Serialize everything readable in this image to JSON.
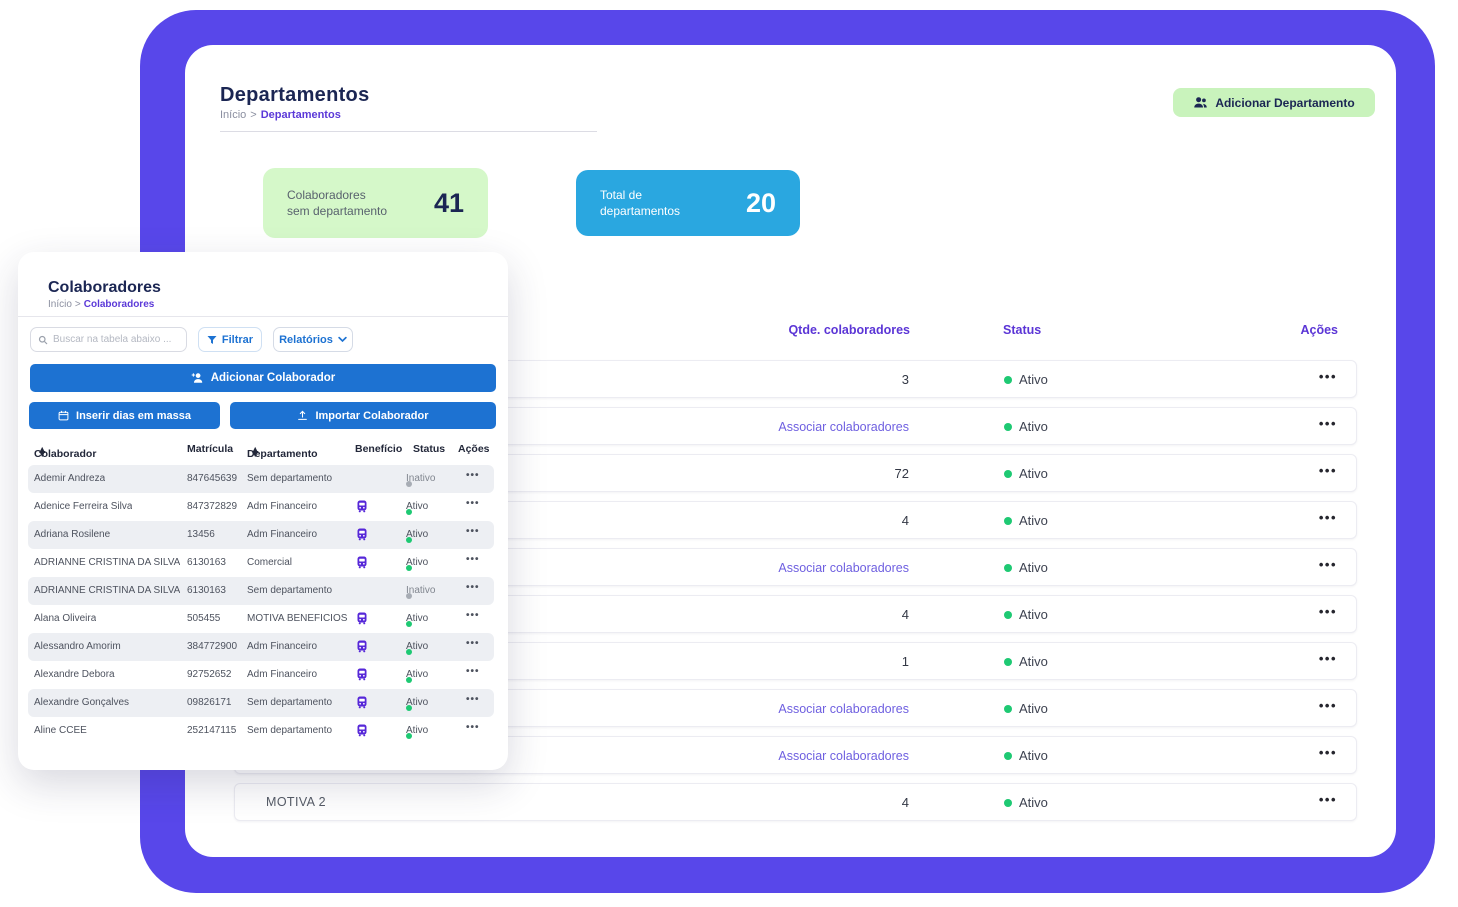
{
  "colors": {
    "shell_purple": "#5847ea",
    "table_header_purple": "#5b35d6",
    "link_purple": "#6e5fe0",
    "primary_blue": "#1d72d2",
    "stat_blue": "#2aa7e0",
    "stat_green": "#d5f8c9",
    "button_green": "#c9f3bc",
    "status_active_green": "#1ec973",
    "status_inactive_gray": "#a7acb4",
    "benefit_icon_purple": "#5627d8",
    "navy_text": "#1b2653"
  },
  "icons": {
    "add_department": "people-icon",
    "search": "magnifier-icon",
    "filter": "funnel-icon",
    "reports": "chevron-down-icon",
    "add_collaborator": "person-plus-icon",
    "bulk_days": "calendar-icon",
    "import": "upload-icon",
    "benefit": "bus-icon",
    "row_actions": "ellipsis-icon"
  },
  "departamentos": {
    "title": "Departamentos",
    "breadcrumb": {
      "home": "Início",
      "separator": ">",
      "current": "Departamentos"
    },
    "add_button_label": "Adicionar Departamento",
    "stats": {
      "no_department": {
        "label": "Colaboradores\nsem departamento",
        "value": "41"
      },
      "total_departments": {
        "label": "Total de\ndepartamentos",
        "value": "20"
      }
    },
    "table": {
      "headers": {
        "qty": "Qtde. colaboradores",
        "status": "Status",
        "actions": "Ações"
      },
      "associate_link_label": "Associar colaboradores",
      "actions_glyph": "•••",
      "rows": [
        {
          "name": "",
          "qty": "3",
          "associate_link": false,
          "status": "Ativo"
        },
        {
          "name": "",
          "qty": "",
          "associate_link": true,
          "status": "Ativo"
        },
        {
          "name": "",
          "qty": "72",
          "associate_link": false,
          "status": "Ativo"
        },
        {
          "name": "",
          "qty": "4",
          "associate_link": false,
          "status": "Ativo"
        },
        {
          "name": "",
          "qty": "",
          "associate_link": true,
          "status": "Ativo"
        },
        {
          "name": "",
          "qty": "4",
          "associate_link": false,
          "status": "Ativo"
        },
        {
          "name": "",
          "qty": "1",
          "associate_link": false,
          "status": "Ativo"
        },
        {
          "name": "",
          "qty": "",
          "associate_link": true,
          "status": "Ativo"
        },
        {
          "name": "",
          "qty": "",
          "associate_link": true,
          "status": "Ativo"
        },
        {
          "name": "MOTIVA 2",
          "qty": "4",
          "associate_link": false,
          "status": "Ativo"
        }
      ]
    }
  },
  "colaboradores": {
    "title": "Colaboradores",
    "breadcrumb": {
      "home": "Início",
      "separator": ">",
      "current": "Colaboradores"
    },
    "search_placeholder": "Buscar na tabela abaixo ...",
    "filter_button_label": "Filtrar",
    "reports_button_label": "Relatórios",
    "add_button_label": "Adicionar Colaborador",
    "bulk_days_button_label": "Inserir dias em massa",
    "import_button_label": "Importar Colaborador",
    "table": {
      "headers": {
        "name": "Colaborador",
        "id": "Matrícula",
        "department": "Departamento",
        "benefit": "Benefício",
        "status": "Status",
        "actions": "Ações"
      },
      "actions_glyph": "•••",
      "rows": [
        {
          "name": "Ademir Andreza",
          "id": "847645639",
          "dept": "Sem departamento",
          "benefit": false,
          "status": "Inativo"
        },
        {
          "name": "Adenice Ferreira Silva",
          "id": "847372829",
          "dept": "Adm Financeiro",
          "benefit": true,
          "status": "Ativo"
        },
        {
          "name": "Adriana Rosilene",
          "id": "13456",
          "dept": "Adm Financeiro",
          "benefit": true,
          "status": "Ativo"
        },
        {
          "name": "ADRIANNE CRISTINA DA SILVA",
          "id": "6130163",
          "dept": "Comercial",
          "benefit": true,
          "status": "Ativo"
        },
        {
          "name": "ADRIANNE CRISTINA DA SILVA",
          "id": "6130163",
          "dept": "Sem departamento",
          "benefit": false,
          "status": "Inativo"
        },
        {
          "name": "Alana Oliveira",
          "id": "505455",
          "dept": "MOTIVA BENEFICIOS",
          "benefit": true,
          "status": "Ativo"
        },
        {
          "name": "Alessandro Amorim",
          "id": "384772900",
          "dept": "Adm Financeiro",
          "benefit": true,
          "status": "Ativo"
        },
        {
          "name": "Alexandre Debora",
          "id": "92752652",
          "dept": "Adm Financeiro",
          "benefit": true,
          "status": "Ativo"
        },
        {
          "name": "Alexandre Gonçalves",
          "id": "09826171",
          "dept": "Sem departamento",
          "benefit": true,
          "status": "Ativo"
        },
        {
          "name": "Aline CCEE",
          "id": "252147115",
          "dept": "Sem departamento",
          "benefit": true,
          "status": "Ativo"
        }
      ]
    }
  }
}
